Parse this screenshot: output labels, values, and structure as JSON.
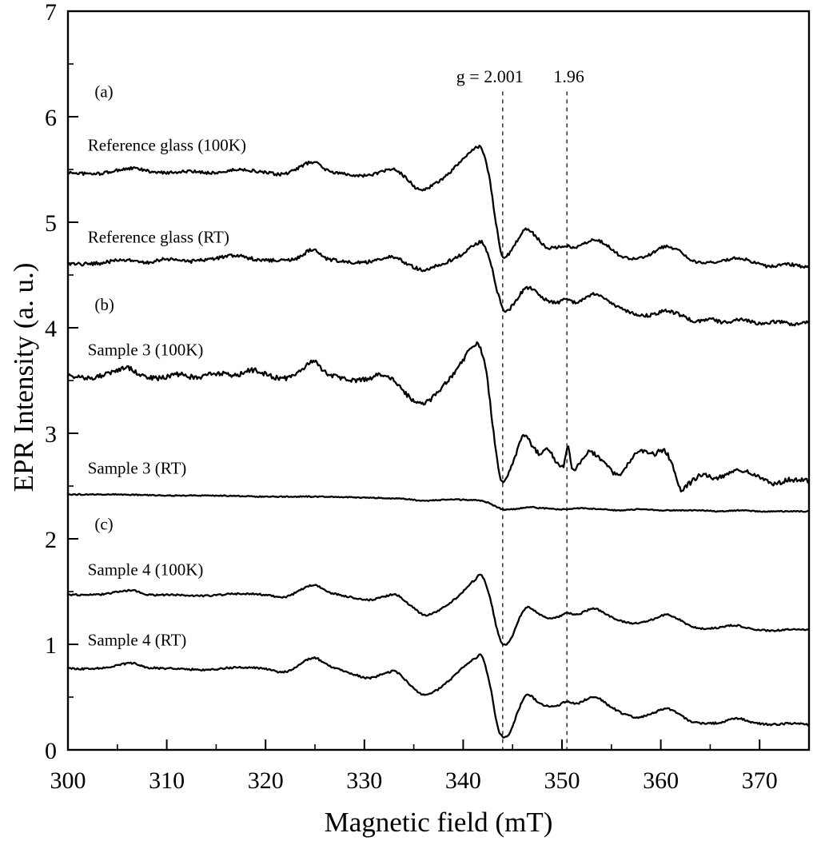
{
  "chart_data": {
    "type": "line",
    "title": "",
    "xlabel": "Magnetic field (mT)",
    "ylabel": "EPR Intensity (a. u.)",
    "xlim": [
      300,
      375
    ],
    "ylim": [
      0,
      7
    ],
    "x_major_ticks": [
      300,
      310,
      320,
      330,
      340,
      350,
      360,
      370
    ],
    "x_minor_ticks": [
      305,
      315,
      325,
      335,
      345,
      355,
      365
    ],
    "y_major_ticks": [
      0,
      1,
      2,
      3,
      4,
      5,
      6,
      7
    ],
    "y_minor_ticks": [
      0.5,
      1.5,
      2.5,
      3.5,
      4.5,
      5.5,
      6.5
    ],
    "grid": false,
    "legend": "none",
    "line_color": "#000000",
    "annotations": [
      {
        "text": "g = 2.001",
        "x": 342.7,
        "y": 6.38
      },
      {
        "text": "1.96",
        "x": 350.7,
        "y": 6.38
      }
    ],
    "reference_lines": [
      {
        "g_label": "2.001",
        "x": 344.0,
        "y_top": 6.24
      },
      {
        "g_label": "1.96",
        "x": 350.5,
        "y_top": 6.24
      }
    ],
    "panel_labels": [
      {
        "text": "(a)",
        "x": 302.7,
        "y": 6.24
      },
      {
        "text": "(b)",
        "x": 302.7,
        "y": 4.22
      },
      {
        "text": "(c)",
        "x": 302.7,
        "y": 2.14
      }
    ],
    "series": [
      {
        "name": "Reference glass (100K)",
        "label": {
          "x": 302,
          "y": 5.73
        },
        "noise": 0.014,
        "points": [
          [
            300,
            5.47
          ],
          [
            303,
            5.46
          ],
          [
            306.5,
            5.51
          ],
          [
            309,
            5.47
          ],
          [
            312,
            5.48
          ],
          [
            315,
            5.47
          ],
          [
            317.5,
            5.5
          ],
          [
            320,
            5.47
          ],
          [
            322,
            5.46
          ],
          [
            324.8,
            5.57
          ],
          [
            326.5,
            5.48
          ],
          [
            328,
            5.46
          ],
          [
            330,
            5.44
          ],
          [
            331.5,
            5.47
          ],
          [
            333,
            5.5
          ],
          [
            334.2,
            5.42
          ],
          [
            335.5,
            5.31
          ],
          [
            336.5,
            5.33
          ],
          [
            338,
            5.42
          ],
          [
            339.5,
            5.55
          ],
          [
            341,
            5.68
          ],
          [
            341.8,
            5.7
          ],
          [
            342.6,
            5.45
          ],
          [
            343.4,
            4.95
          ],
          [
            344,
            4.67
          ],
          [
            344.6,
            4.7
          ],
          [
            345.5,
            4.83
          ],
          [
            346.3,
            4.94
          ],
          [
            347.2,
            4.88
          ],
          [
            348.3,
            4.77
          ],
          [
            349.3,
            4.76
          ],
          [
            350.3,
            4.78
          ],
          [
            351.2,
            4.76
          ],
          [
            352.3,
            4.8
          ],
          [
            353.3,
            4.84
          ],
          [
            354.5,
            4.78
          ],
          [
            356,
            4.68
          ],
          [
            357.5,
            4.66
          ],
          [
            359,
            4.7
          ],
          [
            360.5,
            4.77
          ],
          [
            361.8,
            4.73
          ],
          [
            363,
            4.64
          ],
          [
            364.5,
            4.62
          ],
          [
            366,
            4.63
          ],
          [
            368,
            4.66
          ],
          [
            369.5,
            4.62
          ],
          [
            371,
            4.58
          ],
          [
            373,
            4.6
          ],
          [
            375,
            4.57
          ]
        ]
      },
      {
        "name": "Reference glass (RT)",
        "label": {
          "x": 302,
          "y": 4.86
        },
        "noise": 0.016,
        "points": [
          [
            300,
            4.6
          ],
          [
            303,
            4.61
          ],
          [
            305.5,
            4.64
          ],
          [
            308,
            4.62
          ],
          [
            310,
            4.65
          ],
          [
            312.5,
            4.63
          ],
          [
            315,
            4.66
          ],
          [
            317,
            4.68
          ],
          [
            319,
            4.65
          ],
          [
            321,
            4.64
          ],
          [
            323,
            4.65
          ],
          [
            324.8,
            4.74
          ],
          [
            326,
            4.66
          ],
          [
            328,
            4.63
          ],
          [
            330,
            4.62
          ],
          [
            331.5,
            4.65
          ],
          [
            333,
            4.67
          ],
          [
            334.5,
            4.6
          ],
          [
            335.8,
            4.55
          ],
          [
            337,
            4.58
          ],
          [
            338.5,
            4.63
          ],
          [
            340,
            4.7
          ],
          [
            341.3,
            4.79
          ],
          [
            342,
            4.8
          ],
          [
            342.8,
            4.6
          ],
          [
            343.6,
            4.3
          ],
          [
            344.2,
            4.16
          ],
          [
            344.9,
            4.2
          ],
          [
            345.8,
            4.32
          ],
          [
            346.5,
            4.38
          ],
          [
            347.5,
            4.33
          ],
          [
            348.5,
            4.26
          ],
          [
            349.5,
            4.24
          ],
          [
            350.4,
            4.27
          ],
          [
            351.4,
            4.24
          ],
          [
            352.5,
            4.28
          ],
          [
            353.4,
            4.32
          ],
          [
            354.6,
            4.26
          ],
          [
            356,
            4.18
          ],
          [
            357.5,
            4.13
          ],
          [
            359,
            4.12
          ],
          [
            360.5,
            4.16
          ],
          [
            362,
            4.12
          ],
          [
            363.5,
            4.06
          ],
          [
            365,
            4.08
          ],
          [
            366.5,
            4.05
          ],
          [
            368,
            4.08
          ],
          [
            370,
            4.04
          ],
          [
            372,
            4.06
          ],
          [
            373.5,
            4.03
          ],
          [
            375,
            4.05
          ]
        ]
      },
      {
        "name": "Sample 3 (100K)",
        "label": {
          "x": 302,
          "y": 3.79
        },
        "noise": 0.022,
        "points": [
          [
            300,
            3.55
          ],
          [
            302,
            3.52
          ],
          [
            304,
            3.56
          ],
          [
            306,
            3.62
          ],
          [
            307.5,
            3.55
          ],
          [
            309,
            3.52
          ],
          [
            311,
            3.56
          ],
          [
            313,
            3.53
          ],
          [
            315,
            3.57
          ],
          [
            317,
            3.55
          ],
          [
            318.5,
            3.6
          ],
          [
            320,
            3.56
          ],
          [
            321.5,
            3.52
          ],
          [
            323,
            3.55
          ],
          [
            324.8,
            3.68
          ],
          [
            326,
            3.58
          ],
          [
            327.5,
            3.53
          ],
          [
            329,
            3.5
          ],
          [
            330.5,
            3.52
          ],
          [
            332,
            3.56
          ],
          [
            333.5,
            3.45
          ],
          [
            334.8,
            3.32
          ],
          [
            335.8,
            3.28
          ],
          [
            336.8,
            3.33
          ],
          [
            338,
            3.45
          ],
          [
            339.5,
            3.62
          ],
          [
            340.8,
            3.8
          ],
          [
            341.5,
            3.84
          ],
          [
            342.3,
            3.6
          ],
          [
            343.1,
            3
          ],
          [
            343.8,
            2.57
          ],
          [
            344.5,
            2.6
          ],
          [
            345.3,
            2.8
          ],
          [
            346.2,
            2.99
          ],
          [
            347,
            2.88
          ],
          [
            347.8,
            2.8
          ],
          [
            348.6,
            2.85
          ],
          [
            349.4,
            2.73
          ],
          [
            350.2,
            2.7
          ],
          [
            350.6,
            2.87
          ],
          [
            351,
            2.66
          ],
          [
            351.8,
            2.72
          ],
          [
            352.6,
            2.82
          ],
          [
            353.4,
            2.8
          ],
          [
            354.3,
            2.72
          ],
          [
            355.3,
            2.62
          ],
          [
            356.3,
            2.65
          ],
          [
            357.3,
            2.8
          ],
          [
            358.3,
            2.83
          ],
          [
            359.3,
            2.8
          ],
          [
            360.3,
            2.84
          ],
          [
            361.2,
            2.7
          ],
          [
            362,
            2.47
          ],
          [
            362.8,
            2.52
          ],
          [
            364,
            2.6
          ],
          [
            365.5,
            2.58
          ],
          [
            367,
            2.62
          ],
          [
            368.5,
            2.65
          ],
          [
            370,
            2.58
          ],
          [
            371.5,
            2.52
          ],
          [
            373,
            2.56
          ],
          [
            375,
            2.55
          ]
        ]
      },
      {
        "name": "Sample 3 (RT)",
        "label": {
          "x": 302,
          "y": 2.67
        },
        "noise": 0.005,
        "points": [
          [
            300,
            2.42
          ],
          [
            305,
            2.42
          ],
          [
            310,
            2.41
          ],
          [
            315,
            2.41
          ],
          [
            320,
            2.4
          ],
          [
            325,
            2.4
          ],
          [
            330,
            2.39
          ],
          [
            334,
            2.38
          ],
          [
            336,
            2.36
          ],
          [
            338,
            2.37
          ],
          [
            340,
            2.37
          ],
          [
            342,
            2.36
          ],
          [
            343,
            2.32
          ],
          [
            344,
            2.28
          ],
          [
            345,
            2.28
          ],
          [
            346.5,
            2.3
          ],
          [
            348,
            2.29
          ],
          [
            350,
            2.28
          ],
          [
            352,
            2.29
          ],
          [
            354,
            2.28
          ],
          [
            356,
            2.27
          ],
          [
            358,
            2.28
          ],
          [
            360,
            2.27
          ],
          [
            362,
            2.27
          ],
          [
            364,
            2.27
          ],
          [
            366,
            2.26
          ],
          [
            368,
            2.27
          ],
          [
            370,
            2.26
          ],
          [
            372,
            2.26
          ],
          [
            375,
            2.26
          ]
        ]
      },
      {
        "name": "Sample 4 (100K)",
        "label": {
          "x": 302,
          "y": 1.71
        },
        "noise": 0.008,
        "points": [
          [
            300,
            1.47
          ],
          [
            303,
            1.47
          ],
          [
            306.5,
            1.51
          ],
          [
            308,
            1.47
          ],
          [
            311,
            1.47
          ],
          [
            314,
            1.46
          ],
          [
            317,
            1.48
          ],
          [
            320,
            1.47
          ],
          [
            322,
            1.45
          ],
          [
            324.8,
            1.56
          ],
          [
            326.5,
            1.49
          ],
          [
            328.5,
            1.45
          ],
          [
            330.5,
            1.42
          ],
          [
            332,
            1.45
          ],
          [
            333.2,
            1.47
          ],
          [
            334.5,
            1.38
          ],
          [
            336,
            1.28
          ],
          [
            337,
            1.3
          ],
          [
            338.5,
            1.38
          ],
          [
            340,
            1.5
          ],
          [
            341.3,
            1.62
          ],
          [
            341.9,
            1.65
          ],
          [
            342.7,
            1.45
          ],
          [
            343.5,
            1.12
          ],
          [
            344.1,
            1
          ],
          [
            344.8,
            1.05
          ],
          [
            345.7,
            1.25
          ],
          [
            346.5,
            1.35
          ],
          [
            347.5,
            1.3
          ],
          [
            348.6,
            1.25
          ],
          [
            349.6,
            1.26
          ],
          [
            350.5,
            1.3
          ],
          [
            351.5,
            1.28
          ],
          [
            352.5,
            1.32
          ],
          [
            353.3,
            1.34
          ],
          [
            354.5,
            1.28
          ],
          [
            356,
            1.22
          ],
          [
            357.5,
            1.2
          ],
          [
            359,
            1.23
          ],
          [
            360.5,
            1.28
          ],
          [
            361.8,
            1.24
          ],
          [
            363,
            1.17
          ],
          [
            364.5,
            1.15
          ],
          [
            366,
            1.16
          ],
          [
            367.5,
            1.18
          ],
          [
            369,
            1.15
          ],
          [
            371,
            1.13
          ],
          [
            373,
            1.14
          ],
          [
            375,
            1.14
          ]
        ]
      },
      {
        "name": "Sample 4 (RT)",
        "label": {
          "x": 302,
          "y": 1.04
        },
        "noise": 0.009,
        "points": [
          [
            300,
            0.77
          ],
          [
            303,
            0.77
          ],
          [
            306.5,
            0.82
          ],
          [
            308,
            0.78
          ],
          [
            311,
            0.77
          ],
          [
            314,
            0.76
          ],
          [
            317,
            0.78
          ],
          [
            320,
            0.77
          ],
          [
            322,
            0.74
          ],
          [
            324.8,
            0.87
          ],
          [
            326.5,
            0.79
          ],
          [
            328.5,
            0.73
          ],
          [
            330.5,
            0.68
          ],
          [
            332,
            0.72
          ],
          [
            333.2,
            0.74
          ],
          [
            334.5,
            0.63
          ],
          [
            336,
            0.52
          ],
          [
            337,
            0.55
          ],
          [
            338.5,
            0.65
          ],
          [
            340,
            0.78
          ],
          [
            341.3,
            0.87
          ],
          [
            341.9,
            0.88
          ],
          [
            342.7,
            0.62
          ],
          [
            343.5,
            0.22
          ],
          [
            344.1,
            0.12
          ],
          [
            344.8,
            0.18
          ],
          [
            345.7,
            0.4
          ],
          [
            346.5,
            0.52
          ],
          [
            347.5,
            0.46
          ],
          [
            348.6,
            0.41
          ],
          [
            349.6,
            0.42
          ],
          [
            350.5,
            0.46
          ],
          [
            351.5,
            0.44
          ],
          [
            352.5,
            0.48
          ],
          [
            353.4,
            0.5
          ],
          [
            354.6,
            0.43
          ],
          [
            356,
            0.35
          ],
          [
            357.5,
            0.31
          ],
          [
            359,
            0.34
          ],
          [
            360.5,
            0.39
          ],
          [
            361.8,
            0.34
          ],
          [
            363,
            0.27
          ],
          [
            364.5,
            0.25
          ],
          [
            366,
            0.26
          ],
          [
            367.8,
            0.3
          ],
          [
            369.2,
            0.26
          ],
          [
            371,
            0.24
          ],
          [
            373,
            0.25
          ],
          [
            375,
            0.24
          ]
        ]
      }
    ]
  }
}
